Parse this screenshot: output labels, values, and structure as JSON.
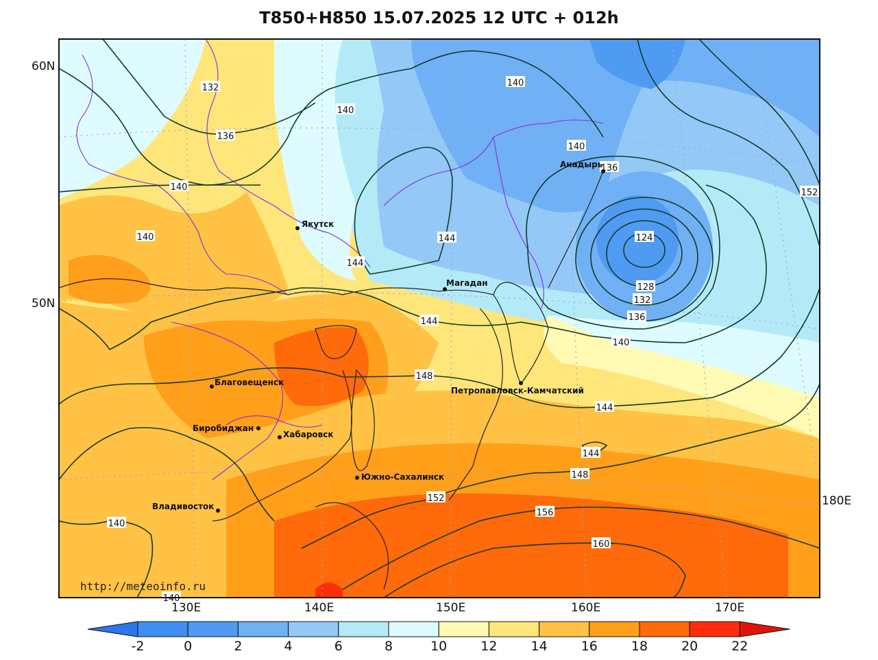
{
  "title": "T850+H850 15.07.2025 12 UTC + 012h",
  "watermark": "http://meteoinfo.ru",
  "lat_labels": [
    "60N",
    "50N"
  ],
  "lon_labels": [
    "130E",
    "140E",
    "150E",
    "160E",
    "170E",
    "180E"
  ],
  "colorbar": {
    "ticks": [
      "-2",
      "0",
      "2",
      "4",
      "6",
      "8",
      "10",
      "12",
      "14",
      "16",
      "18",
      "20",
      "22"
    ],
    "colors": [
      "#3f8ff0",
      "#4f9bf2",
      "#70b0f4",
      "#94c8f7",
      "#b4eaf8",
      "#defcff",
      "#fffab4",
      "#ffe67a",
      "#ffc245",
      "#ff9f1a",
      "#ff6a0a",
      "#ff2d0a"
    ],
    "under_color": "#2a78ea",
    "over_color": "#e0140a"
  },
  "cities": [
    {
      "name": "Якутск"
    },
    {
      "name": "Магадан"
    },
    {
      "name": "Анадырь"
    },
    {
      "name": "Благовещенск"
    },
    {
      "name": "Биробиджан"
    },
    {
      "name": "Хабаровск"
    },
    {
      "name": "Петропавловск-Камчатский"
    },
    {
      "name": "Южно-Сахалинск"
    },
    {
      "name": "Владивосток"
    }
  ],
  "contour_labels": [
    "132",
    "140",
    "140",
    "136",
    "140",
    "140",
    "136",
    "152",
    "140",
    "144",
    "144",
    "124",
    "128",
    "132",
    "136",
    "140",
    "144",
    "148",
    "144",
    "144",
    "148",
    "152",
    "156",
    "160",
    "140",
    "140"
  ]
}
